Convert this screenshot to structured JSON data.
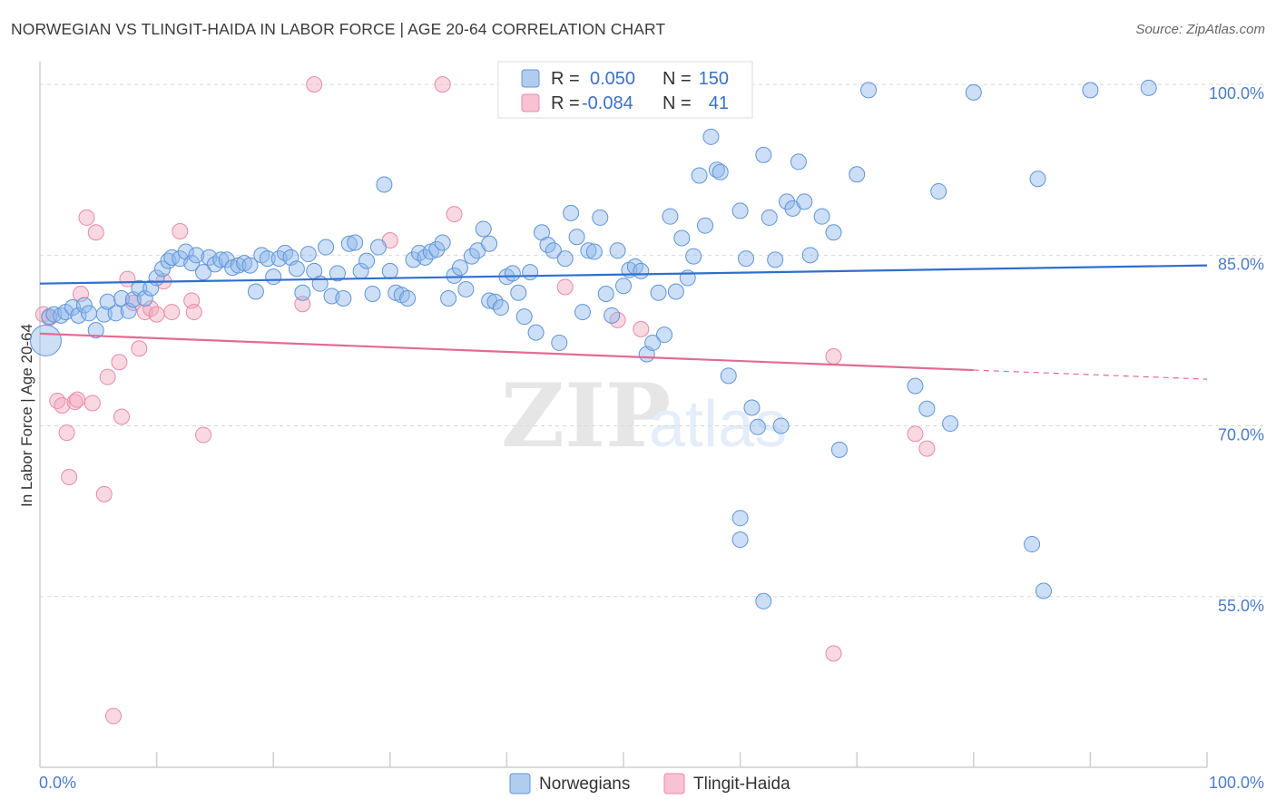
{
  "header": {
    "title": "NORWEGIAN VS TLINGIT-HAIDA IN LABOR FORCE | AGE 20-64 CORRELATION CHART",
    "source": "Source: ZipAtlas.com"
  },
  "watermark": {
    "zip": "ZIP",
    "atlas": "atlas"
  },
  "legend": {
    "rows": [
      {
        "r_label": "R =",
        "r_value": "0.050",
        "n_label": "N =",
        "n_value": "150",
        "color": "#8fb8ea"
      },
      {
        "r_label": "R =",
        "r_value": "-0.084",
        "n_label": "N =",
        "n_value": "41",
        "color": "#f4a9bf"
      }
    ]
  },
  "bottom_legend": [
    {
      "label": "Norwegians",
      "color": "#8fb8ea"
    },
    {
      "label": "Tlingit-Haida",
      "color": "#f4a9bf"
    }
  ],
  "chart_data": {
    "type": "scatter",
    "title": "NORWEGIAN VS TLINGIT-HAIDA IN LABOR FORCE | AGE 20-64 CORRELATION CHART",
    "xlabel": "",
    "ylabel": "In Labor Force | Age 20-64",
    "xlim": [
      0,
      100
    ],
    "ylim": [
      40,
      102
    ],
    "x_tick_labels": [
      "0.0%",
      "100.0%"
    ],
    "y_ticks": [
      55,
      70,
      85,
      100
    ],
    "y_tick_labels": [
      "55.0%",
      "70.0%",
      "85.0%",
      "100.0%"
    ],
    "colors": {
      "Norwegians": "#8fb8ea",
      "Norwegians_line": "#2f6fcf",
      "Tlingit-Haida": "#f4a9bf",
      "Tlingit-Haida_line": "#e36b94"
    },
    "series": [
      {
        "name": "Norwegians",
        "trend": {
          "x0": 0,
          "y0": 82.5,
          "x1": 100,
          "y1": 84.1
        },
        "points": [
          [
            0.5,
            77.5
          ],
          [
            0.8,
            79.6
          ],
          [
            1.2,
            79.8
          ],
          [
            1.8,
            79.7
          ],
          [
            2.2,
            80.0
          ],
          [
            2.8,
            80.4
          ],
          [
            3.3,
            79.7
          ],
          [
            3.8,
            80.6
          ],
          [
            4.2,
            79.9
          ],
          [
            4.8,
            78.4
          ],
          [
            5.5,
            79.8
          ],
          [
            5.8,
            80.9
          ],
          [
            6.5,
            79.9
          ],
          [
            7.0,
            81.2
          ],
          [
            7.6,
            80.1
          ],
          [
            8.0,
            81.1
          ],
          [
            8.5,
            82.1
          ],
          [
            9.0,
            81.2
          ],
          [
            9.5,
            82.1
          ],
          [
            10.0,
            83.0
          ],
          [
            10.5,
            83.8
          ],
          [
            11.0,
            84.5
          ],
          [
            11.3,
            84.8
          ],
          [
            12.0,
            84.7
          ],
          [
            12.5,
            85.3
          ],
          [
            13.0,
            84.3
          ],
          [
            13.4,
            85.0
          ],
          [
            14.0,
            83.5
          ],
          [
            14.5,
            84.8
          ],
          [
            15.0,
            84.2
          ],
          [
            15.5,
            84.6
          ],
          [
            16.0,
            84.6
          ],
          [
            16.5,
            83.9
          ],
          [
            17.0,
            84.1
          ],
          [
            17.5,
            84.3
          ],
          [
            18.0,
            84.1
          ],
          [
            18.5,
            81.8
          ],
          [
            19.0,
            85.0
          ],
          [
            19.5,
            84.7
          ],
          [
            20.0,
            83.1
          ],
          [
            20.5,
            84.7
          ],
          [
            21.0,
            85.2
          ],
          [
            21.5,
            84.8
          ],
          [
            22.0,
            83.8
          ],
          [
            22.5,
            81.7
          ],
          [
            23.0,
            85.1
          ],
          [
            23.5,
            83.6
          ],
          [
            24.0,
            82.5
          ],
          [
            24.5,
            85.7
          ],
          [
            25.0,
            81.4
          ],
          [
            25.5,
            83.4
          ],
          [
            26.0,
            81.2
          ],
          [
            26.5,
            86.0
          ],
          [
            27.0,
            86.1
          ],
          [
            27.5,
            83.6
          ],
          [
            28.0,
            84.5
          ],
          [
            28.5,
            81.6
          ],
          [
            29.0,
            85.7
          ],
          [
            29.5,
            91.2
          ],
          [
            30.0,
            83.6
          ],
          [
            30.5,
            81.7
          ],
          [
            31.0,
            81.5
          ],
          [
            31.5,
            81.2
          ],
          [
            32.0,
            84.6
          ],
          [
            32.5,
            85.2
          ],
          [
            33.0,
            84.8
          ],
          [
            33.5,
            85.3
          ],
          [
            34.0,
            85.5
          ],
          [
            34.5,
            86.1
          ],
          [
            35.0,
            81.2
          ],
          [
            35.5,
            83.2
          ],
          [
            36.0,
            83.9
          ],
          [
            36.5,
            82.0
          ],
          [
            37.0,
            84.9
          ],
          [
            37.5,
            85.4
          ],
          [
            38.0,
            87.3
          ],
          [
            38.5,
            86.0
          ],
          [
            38.5,
            81.0
          ],
          [
            39.0,
            80.9
          ],
          [
            39.5,
            80.4
          ],
          [
            40.0,
            83.1
          ],
          [
            40.5,
            83.4
          ],
          [
            41.0,
            81.7
          ],
          [
            41.5,
            79.6
          ],
          [
            42.0,
            83.5
          ],
          [
            42.5,
            78.2
          ],
          [
            43.0,
            87.0
          ],
          [
            43.5,
            85.9
          ],
          [
            44.0,
            85.4
          ],
          [
            44.5,
            77.3
          ],
          [
            45.0,
            84.7
          ],
          [
            45.5,
            88.7
          ],
          [
            46.0,
            86.6
          ],
          [
            46.5,
            80.0
          ],
          [
            47.0,
            85.4
          ],
          [
            47.5,
            85.3
          ],
          [
            48.0,
            88.3
          ],
          [
            48.5,
            81.6
          ],
          [
            49.0,
            79.7
          ],
          [
            49.5,
            85.4
          ],
          [
            50.0,
            82.3
          ],
          [
            50.5,
            83.7
          ],
          [
            51.0,
            84.0
          ],
          [
            51.5,
            83.6
          ],
          [
            52.0,
            76.3
          ],
          [
            52.5,
            77.3
          ],
          [
            53.0,
            81.7
          ],
          [
            53.5,
            78.0
          ],
          [
            54.0,
            88.4
          ],
          [
            54.5,
            81.8
          ],
          [
            55.0,
            86.5
          ],
          [
            55.5,
            83.0
          ],
          [
            56.0,
            84.9
          ],
          [
            56.5,
            92.0
          ],
          [
            57.0,
            87.6
          ],
          [
            57.5,
            95.4
          ],
          [
            58.0,
            92.5
          ],
          [
            58.3,
            92.3
          ],
          [
            59.0,
            74.4
          ],
          [
            60.0,
            88.9
          ],
          [
            60.5,
            84.7
          ],
          [
            61.0,
            71.6
          ],
          [
            61.5,
            69.9
          ],
          [
            62.0,
            93.8
          ],
          [
            62.5,
            88.3
          ],
          [
            63.0,
            84.6
          ],
          [
            63.5,
            70.0
          ],
          [
            64.0,
            89.7
          ],
          [
            64.5,
            89.1
          ],
          [
            65.0,
            93.2
          ],
          [
            65.5,
            89.7
          ],
          [
            66.0,
            85.0
          ],
          [
            67.0,
            88.4
          ],
          [
            68.0,
            87.0
          ],
          [
            68.5,
            67.9
          ],
          [
            70.0,
            92.1
          ],
          [
            71.0,
            99.5
          ],
          [
            75.0,
            73.5
          ],
          [
            76.0,
            71.5
          ],
          [
            77.0,
            90.6
          ],
          [
            78.0,
            70.2
          ],
          [
            80.0,
            99.3
          ],
          [
            85.0,
            59.6
          ],
          [
            85.5,
            91.7
          ],
          [
            86.0,
            55.5
          ],
          [
            90.0,
            99.5
          ],
          [
            95.0,
            99.7
          ],
          [
            60.0,
            61.9
          ],
          [
            60.0,
            60.0
          ],
          [
            62.0,
            54.6
          ]
        ]
      },
      {
        "name": "Tlingit-Haida",
        "trend": {
          "x0": 0,
          "y0": 78.1,
          "x1": 80,
          "y1": 74.9,
          "dash_to_x": 100,
          "dash_to_y": 74.1
        },
        "points": [
          [
            0.3,
            79.8
          ],
          [
            0.8,
            79.5
          ],
          [
            1.5,
            72.2
          ],
          [
            1.9,
            71.8
          ],
          [
            2.3,
            69.4
          ],
          [
            2.5,
            65.5
          ],
          [
            3.0,
            72.1
          ],
          [
            3.5,
            81.6
          ],
          [
            4.0,
            88.3
          ],
          [
            4.5,
            72.0
          ],
          [
            4.8,
            87.0
          ],
          [
            5.5,
            64.0
          ],
          [
            5.8,
            74.3
          ],
          [
            6.3,
            44.5
          ],
          [
            6.8,
            75.6
          ],
          [
            7.0,
            70.8
          ],
          [
            7.5,
            82.9
          ],
          [
            8.0,
            80.8
          ],
          [
            8.5,
            76.8
          ],
          [
            9.0,
            80.0
          ],
          [
            9.5,
            80.3
          ],
          [
            10.0,
            79.8
          ],
          [
            10.6,
            82.7
          ],
          [
            11.3,
            80.0
          ],
          [
            12.0,
            87.1
          ],
          [
            13.0,
            81.0
          ],
          [
            13.2,
            80.0
          ],
          [
            14.0,
            69.2
          ],
          [
            22.5,
            80.7
          ],
          [
            23.5,
            100.0
          ],
          [
            30.0,
            86.3
          ],
          [
            34.5,
            100.0
          ],
          [
            35.5,
            88.6
          ],
          [
            45.0,
            82.2
          ],
          [
            49.5,
            79.3
          ],
          [
            51.5,
            78.5
          ],
          [
            68.0,
            76.1
          ],
          [
            68.0,
            50.0
          ],
          [
            75.0,
            69.3
          ],
          [
            76.0,
            68.0
          ],
          [
            3.2,
            72.3
          ]
        ]
      }
    ]
  }
}
